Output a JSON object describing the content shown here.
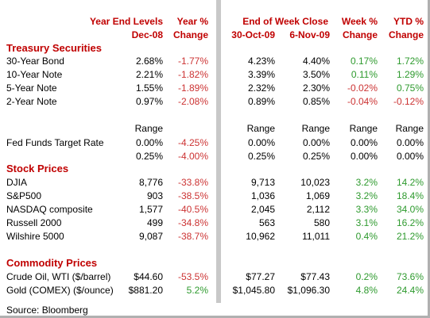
{
  "header": {
    "year_end": [
      "Year End Levels",
      "Dec-08"
    ],
    "year_pct": [
      "Year %",
      "Change"
    ],
    "end_week": "End of Week Close",
    "date1": "30-Oct-09",
    "date2": "6-Nov-09",
    "week_pct": [
      "Week %",
      "Change"
    ],
    "ytd_pct": [
      "YTD %",
      "Change"
    ]
  },
  "sections": [
    {
      "title": "Treasury Securities",
      "rows": [
        [
          "30-Year Bond",
          "2.68%",
          "-1.77%",
          "4.23%",
          "4.40%",
          "0.17%",
          "1.72%"
        ],
        [
          "10-Year Note",
          "2.21%",
          "-1.82%",
          "3.39%",
          "3.50%",
          "0.11%",
          "1.29%"
        ],
        [
          "5-Year Note",
          "1.55%",
          "-1.89%",
          "2.32%",
          "2.30%",
          "-0.02%",
          "0.75%"
        ],
        [
          "2-Year Note",
          "0.97%",
          "-2.08%",
          "0.89%",
          "0.85%",
          "-0.04%",
          "-0.12%"
        ]
      ]
    },
    {
      "rows": [
        [
          null,
          "Range",
          null,
          "Range",
          "Range",
          "Range",
          "Range"
        ],
        [
          "Fed Funds Target Rate",
          "0.00%",
          "-4.25%",
          "0.00%",
          "0.00%",
          "0.00%",
          "0.00%"
        ],
        [
          null,
          "0.25%",
          "-4.00%",
          "0.25%",
          "0.25%",
          "0.00%",
          "0.00%"
        ]
      ]
    },
    {
      "title": "Stock Prices",
      "rows": [
        [
          "DJIA",
          "8,776",
          "-33.8%",
          "9,713",
          "10,023",
          "3.2%",
          "14.2%"
        ],
        [
          "S&P500",
          "903",
          "-38.5%",
          "1,036",
          "1,069",
          "3.2%",
          "18.4%"
        ],
        [
          "NASDAQ composite",
          "1,577",
          "-40.5%",
          "2,045",
          "2,112",
          "3.3%",
          "34.0%"
        ],
        [
          "Russell 2000",
          "499",
          "-34.8%",
          "563",
          "580",
          "3.1%",
          "16.2%"
        ],
        [
          "Wilshire 5000",
          "9,087",
          "-38.7%",
          "10,962",
          "11,011",
          "0.4%",
          "21.2%"
        ]
      ]
    },
    {
      "title": "Commodity Prices",
      "rows": [
        [
          "Crude Oil, WTI ($/barrel)",
          "$44.60",
          "-53.5%",
          "$77.27",
          "$77.43",
          "0.2%",
          "73.6%"
        ],
        [
          "Gold (COMEX) ($/ounce)",
          "$881.20",
          "5.2%",
          "$1,045.80",
          "$1,096.30",
          "4.8%",
          "24.4%"
        ]
      ]
    }
  ],
  "source": "Source: Bloomberg"
}
